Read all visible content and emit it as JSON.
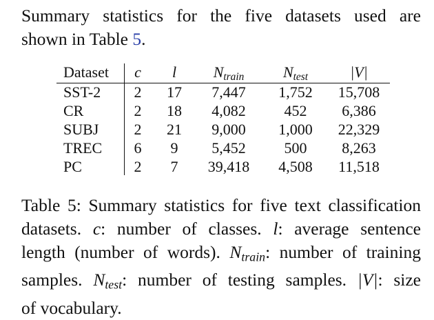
{
  "intro": {
    "line1": "Summary statistics for the five datasets used are",
    "line2_prefix": "shown in Table",
    "line2_ref": "5",
    "line2_suffix": "."
  },
  "table": {
    "headers": {
      "dataset": "Dataset",
      "c": "c",
      "l": "l",
      "ntrain_base": "N",
      "ntrain_sub": "train",
      "ntest_base": "N",
      "ntest_sub": "test",
      "v": "|V|"
    },
    "rows": [
      {
        "dataset": "SST-2",
        "c": "2",
        "l": "17",
        "ntrain": "7,447",
        "ntest": "1,752",
        "v": "15,708"
      },
      {
        "dataset": "CR",
        "c": "2",
        "l": "18",
        "ntrain": "4,082",
        "ntest": "452",
        "v": "6,386"
      },
      {
        "dataset": "SUBJ",
        "c": "2",
        "l": "21",
        "ntrain": "9,000",
        "ntest": "1,000",
        "v": "22,329"
      },
      {
        "dataset": "TREC",
        "c": "6",
        "l": "9",
        "ntrain": "5,452",
        "ntest": "500",
        "v": "8,263"
      },
      {
        "dataset": "PC",
        "c": "2",
        "l": "7",
        "ntrain": "39,418",
        "ntest": "4,508",
        "v": "11,518"
      }
    ]
  },
  "caption": {
    "line1": "Table 5: Summary statistics for five text classification",
    "line2_a": "datasets.",
    "line2_c": "c",
    "line2_b": ": number of classes.",
    "line2_l": "l",
    "line2_d": ": average sentence",
    "line3_a": "length (number of words).",
    "line3_N": "N",
    "line3_sub": "train",
    "line3_b": ": number of training",
    "line4_a": "samples.",
    "line4_N": "N",
    "line4_sub": "test",
    "line4_b": ": number of testing samples.",
    "line4_V": "|V|",
    "line4_c": ": size",
    "line5": "of vocabulary."
  }
}
